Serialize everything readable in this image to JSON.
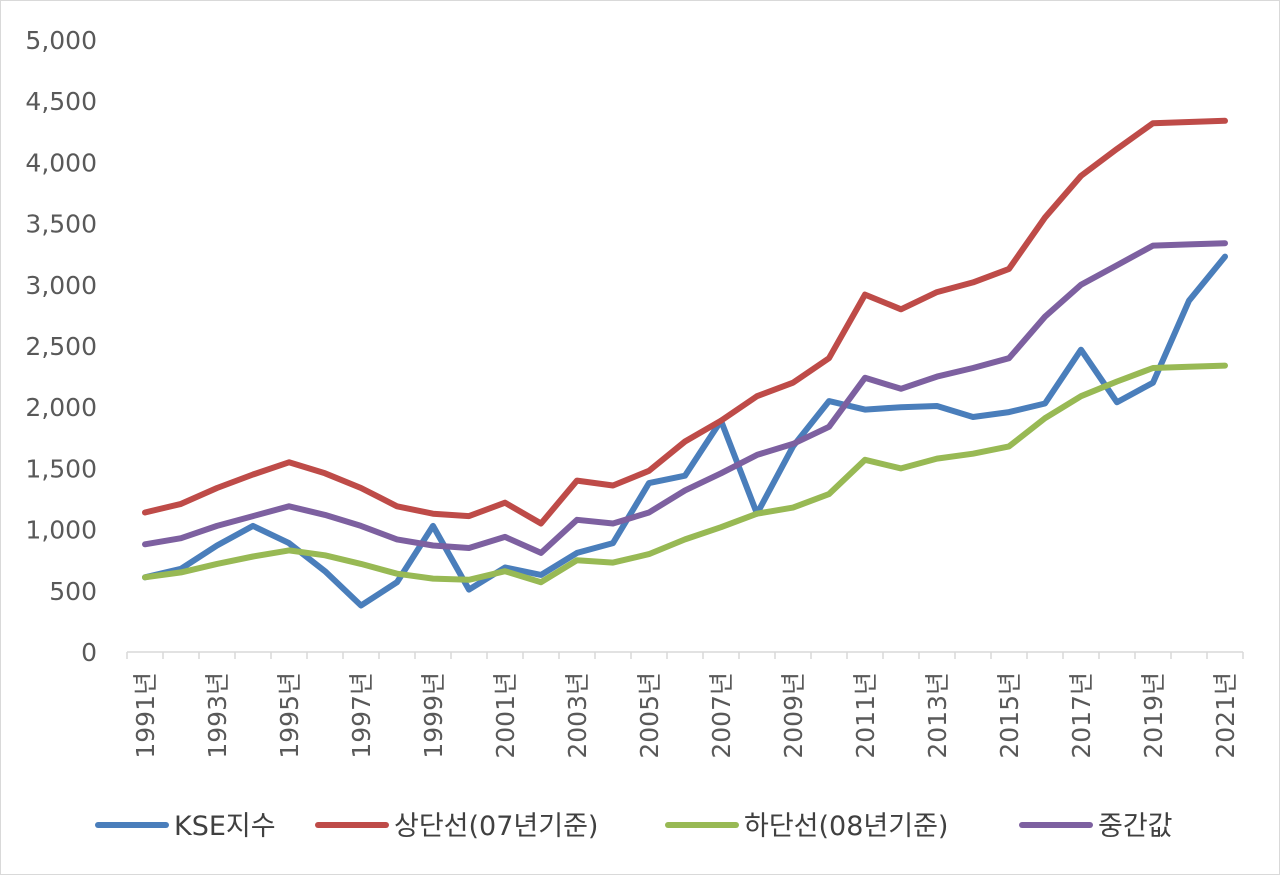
{
  "chart_data": {
    "type": "line",
    "title": "",
    "xlabel": "",
    "ylabel": "",
    "ylim": [
      0,
      5000
    ],
    "yticks": [
      "0",
      "500",
      "1,000",
      "1,500",
      "2,000",
      "2,500",
      "3,000",
      "3,500",
      "4,000",
      "4,500",
      "5,000"
    ],
    "grid": false,
    "legend_position": "bottom",
    "categories": [
      "1991년",
      "1992년",
      "1993년",
      "1994년",
      "1995년",
      "1996년",
      "1997년",
      "1998년",
      "1999년",
      "2000년",
      "2001년",
      "2002년",
      "2003년",
      "2004년",
      "2005년",
      "2006년",
      "2007년",
      "2008년",
      "2009년",
      "2010년",
      "2011년",
      "2012년",
      "2013년",
      "2014년",
      "2015년",
      "2016년",
      "2017년",
      "2018년",
      "2019년",
      "2020년",
      "2021년"
    ],
    "visible_tick_labels": [
      "1991년",
      "1993년",
      "1995년",
      "1997년",
      "1999년",
      "2001년",
      "2003년",
      "2005년",
      "2007년",
      "2009년",
      "2011년",
      "2013년",
      "2015년",
      "2017년",
      "2019년",
      "2021년"
    ],
    "series": [
      {
        "name": "KSE지수",
        "color": "#4a7ebb",
        "values": [
          610,
          680,
          870,
          1030,
          890,
          660,
          380,
          570,
          1030,
          510,
          690,
          630,
          810,
          890,
          1380,
          1440,
          1890,
          1130,
          1680,
          2050,
          1980,
          2000,
          2010,
          1920,
          1960,
          2030,
          2470,
          2040,
          2200,
          2870,
          3230
        ]
      },
      {
        "name": "상단선(07년기준)",
        "color": "#be4b48",
        "values": [
          1140,
          1210,
          1340,
          1450,
          1550,
          1460,
          1340,
          1190,
          1130,
          1110,
          1220,
          1050,
          1400,
          1360,
          1480,
          1720,
          1890,
          2090,
          2200,
          2400,
          2920,
          2800,
          2940,
          3020,
          3130,
          3550,
          3890,
          4110,
          4320,
          4330,
          4340
        ]
      },
      {
        "name": "하단선(08년기준)",
        "color": "#98b954",
        "values": [
          610,
          650,
          720,
          780,
          830,
          790,
          720,
          640,
          600,
          590,
          660,
          570,
          750,
          730,
          800,
          920,
          1020,
          1130,
          1180,
          1290,
          1570,
          1500,
          1580,
          1620,
          1680,
          1910,
          2090,
          2210,
          2320,
          2330,
          2340
        ]
      },
      {
        "name": "중간값",
        "color": "#7d60a0",
        "values": [
          880,
          930,
          1030,
          1110,
          1190,
          1120,
          1030,
          920,
          870,
          850,
          940,
          810,
          1080,
          1050,
          1140,
          1320,
          1460,
          1610,
          1700,
          1840,
          2240,
          2150,
          2250,
          2320,
          2400,
          2740,
          3000,
          3160,
          3320,
          3330,
          3340
        ]
      }
    ]
  }
}
